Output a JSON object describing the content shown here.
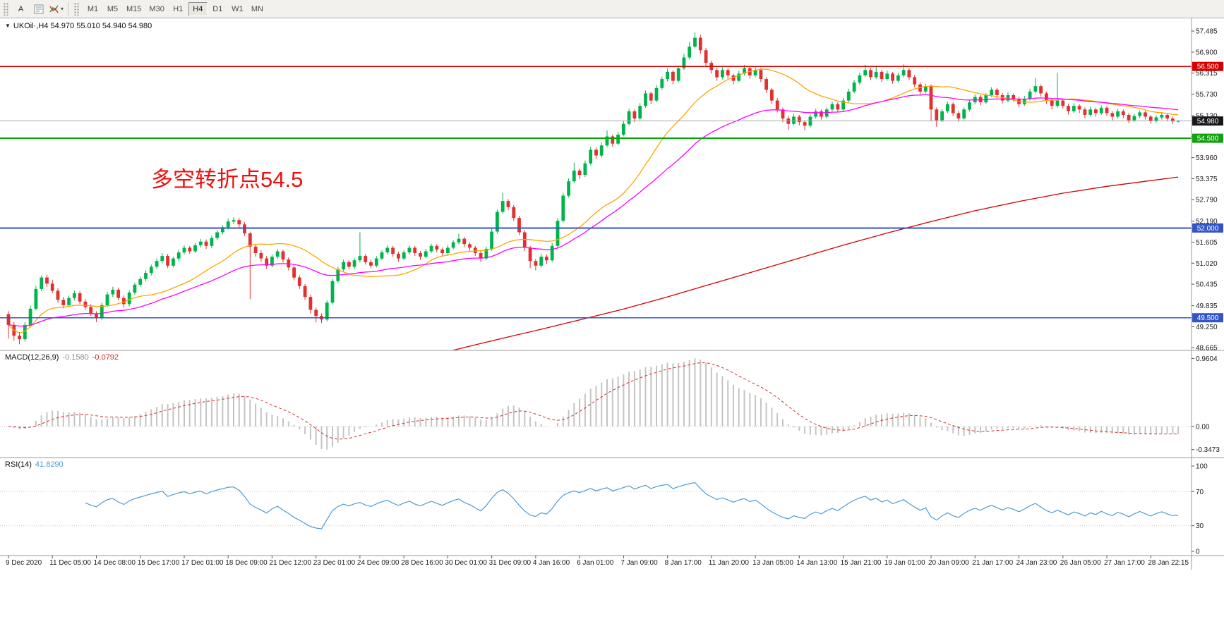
{
  "toolbar": {
    "text_tool_label": "A",
    "timeframes": [
      "M1",
      "M5",
      "M15",
      "M30",
      "H1",
      "H4",
      "D1",
      "W1",
      "MN"
    ],
    "active_timeframe": "H4"
  },
  "chart_data": {
    "type": "candlestick",
    "symbol_label": "UKOil·,H4",
    "ohlc_label": "54.970 55.010 54.940 54.980",
    "annotation": {
      "text": "多空转折点54.5",
      "color": "#f20d0d"
    },
    "colors": {
      "bull": "#00b44b",
      "bear": "#e13030",
      "ma_fast": "#ffa500",
      "ma_mid": "#ff00ff",
      "ma_slow": "#d40000",
      "axis_text": "#1a1a1a"
    },
    "ma_fast_period": 20,
    "ma_mid_period": 40,
    "price_ticks": [
      57.485,
      56.9,
      56.315,
      55.73,
      55.13,
      54.545,
      53.96,
      53.375,
      52.79,
      52.19,
      51.605,
      51.02,
      50.435,
      49.835,
      49.25,
      48.665
    ],
    "hlines": [
      {
        "price": 56.5,
        "color": "#d40000",
        "width": 1.4,
        "badge": "56.500",
        "badge_color": "#d40000"
      },
      {
        "price": 54.98,
        "color": "#a6a6ad",
        "width": 1,
        "badge": "54.980",
        "badge_color": "#17171c"
      },
      {
        "price": 54.5,
        "color": "#00a800",
        "width": 2,
        "badge": "54.500",
        "badge_color": "#11a111"
      },
      {
        "price": 52.0,
        "color": "#3355c8",
        "width": 2,
        "badge": "52.000",
        "badge_color": "#3355c8"
      },
      {
        "price": 49.5,
        "color": "#3355c8",
        "width": 1.4,
        "badge": "49.500",
        "badge_color": "#3355c8"
      }
    ],
    "time_labels": [
      "9 Dec 2020",
      "11 Dec 05:00",
      "14 Dec 08:00",
      "15 Dec 17:00",
      "17 Dec 01:00",
      "18 Dec 09:00",
      "21 Dec 12:00",
      "23 Dec 01:00",
      "24 Dec 09:00",
      "28 Dec 16:00",
      "30 Dec 01:00",
      "31 Dec 09:00",
      "4 Jan 16:00",
      "6 Jan 01:00",
      "7 Jan 09:00",
      "8 Jan 17:00",
      "11 Jan 20:00",
      "13 Jan 05:00",
      "14 Jan 13:00",
      "15 Jan 21:00",
      "19 Jan 01:00",
      "20 Jan 09:00",
      "21 Jan 17:00",
      "24 Jan 23:00",
      "26 Jan 05:00",
      "27 Jan 17:00",
      "28 Jan 22:15"
    ],
    "ma_slow_points": [
      [
        76,
        48.4
      ],
      [
        83,
        48.67
      ],
      [
        90,
        48.93
      ],
      [
        97,
        49.18
      ],
      [
        104,
        49.44
      ],
      [
        112,
        49.74
      ],
      [
        120,
        50.08
      ],
      [
        128,
        50.44
      ],
      [
        136,
        50.8
      ],
      [
        144,
        51.16
      ],
      [
        152,
        51.52
      ],
      [
        160,
        51.86
      ],
      [
        168,
        52.18
      ],
      [
        176,
        52.48
      ],
      [
        184,
        52.74
      ],
      [
        192,
        52.97
      ],
      [
        200,
        53.16
      ],
      [
        207,
        53.3
      ],
      [
        213,
        53.42
      ]
    ],
    "candles": [
      [
        49.6,
        49.68,
        48.92,
        49.3
      ],
      [
        49.3,
        49.38,
        48.86,
        49.0
      ],
      [
        49.0,
        49.1,
        48.76,
        48.9
      ],
      [
        48.9,
        49.38,
        48.84,
        49.3
      ],
      [
        49.3,
        49.84,
        49.26,
        49.75
      ],
      [
        49.75,
        50.38,
        49.7,
        50.3
      ],
      [
        50.3,
        50.68,
        50.24,
        50.62
      ],
      [
        50.62,
        50.7,
        50.36,
        50.45
      ],
      [
        50.45,
        50.56,
        50.18,
        50.25
      ],
      [
        50.25,
        50.32,
        49.92,
        50.0
      ],
      [
        50.0,
        50.08,
        49.76,
        49.85
      ],
      [
        49.85,
        50.12,
        49.8,
        50.05
      ],
      [
        50.05,
        50.26,
        49.98,
        50.18
      ],
      [
        50.18,
        50.24,
        49.88,
        49.95
      ],
      [
        49.95,
        50.02,
        49.72,
        49.8
      ],
      [
        49.8,
        49.88,
        49.55,
        49.62
      ],
      [
        49.62,
        49.68,
        49.38,
        49.5
      ],
      [
        49.5,
        49.92,
        49.44,
        49.85
      ],
      [
        49.85,
        50.22,
        49.8,
        50.15
      ],
      [
        50.15,
        50.36,
        50.08,
        50.28
      ],
      [
        50.28,
        50.34,
        49.98,
        50.05
      ],
      [
        50.05,
        50.12,
        49.78,
        49.88
      ],
      [
        49.88,
        50.26,
        49.82,
        50.2
      ],
      [
        50.2,
        50.48,
        50.14,
        50.42
      ],
      [
        50.42,
        50.64,
        50.36,
        50.58
      ],
      [
        50.58,
        50.82,
        50.52,
        50.75
      ],
      [
        50.75,
        50.98,
        50.68,
        50.92
      ],
      [
        50.92,
        51.15,
        50.86,
        51.08
      ],
      [
        51.08,
        51.3,
        51.02,
        51.22
      ],
      [
        51.22,
        51.28,
        50.88,
        50.95
      ],
      [
        50.95,
        51.2,
        50.9,
        51.15
      ],
      [
        51.15,
        51.38,
        51.08,
        51.32
      ],
      [
        51.32,
        51.52,
        51.26,
        51.45
      ],
      [
        51.45,
        51.5,
        51.28,
        51.35
      ],
      [
        51.35,
        51.58,
        51.3,
        51.52
      ],
      [
        51.52,
        51.7,
        51.46,
        51.62
      ],
      [
        51.62,
        51.68,
        51.42,
        51.5
      ],
      [
        51.5,
        51.78,
        51.44,
        51.72
      ],
      [
        51.72,
        51.94,
        51.66,
        51.88
      ],
      [
        51.88,
        52.08,
        51.82,
        52.02
      ],
      [
        52.02,
        52.26,
        51.96,
        52.18
      ],
      [
        52.18,
        52.3,
        52.1,
        52.22
      ],
      [
        52.22,
        52.28,
        52.0,
        52.1
      ],
      [
        52.1,
        52.16,
        51.78,
        51.85
      ],
      [
        51.85,
        51.9,
        50.02,
        51.48
      ],
      [
        51.48,
        51.54,
        51.2,
        51.3
      ],
      [
        51.3,
        51.38,
        51.06,
        51.15
      ],
      [
        51.15,
        51.22,
        50.86,
        50.95
      ],
      [
        50.95,
        51.26,
        50.9,
        51.2
      ],
      [
        51.2,
        51.42,
        51.14,
        51.35
      ],
      [
        51.35,
        51.4,
        51.04,
        51.12
      ],
      [
        51.12,
        51.18,
        50.82,
        50.9
      ],
      [
        50.9,
        50.96,
        50.54,
        50.62
      ],
      [
        50.62,
        50.68,
        50.3,
        50.38
      ],
      [
        50.38,
        50.44,
        50.0,
        50.08
      ],
      [
        50.08,
        50.14,
        49.62,
        49.72
      ],
      [
        49.72,
        49.78,
        49.37,
        49.55
      ],
      [
        49.55,
        49.62,
        49.35,
        49.45
      ],
      [
        49.45,
        49.98,
        49.4,
        49.92
      ],
      [
        49.92,
        50.58,
        49.86,
        50.52
      ],
      [
        50.52,
        50.92,
        50.46,
        50.85
      ],
      [
        50.85,
        51.12,
        50.8,
        51.05
      ],
      [
        51.05,
        51.1,
        50.84,
        50.92
      ],
      [
        50.92,
        51.16,
        50.86,
        51.1
      ],
      [
        51.1,
        51.88,
        51.04,
        51.22
      ],
      [
        51.22,
        51.28,
        50.98,
        51.05
      ],
      [
        51.05,
        51.12,
        50.88,
        50.95
      ],
      [
        50.95,
        51.22,
        50.9,
        51.15
      ],
      [
        51.15,
        51.38,
        51.1,
        51.32
      ],
      [
        51.32,
        51.52,
        51.26,
        51.45
      ],
      [
        51.45,
        51.5,
        51.2,
        51.28
      ],
      [
        51.28,
        51.34,
        51.06,
        51.15
      ],
      [
        51.15,
        51.38,
        51.1,
        51.32
      ],
      [
        51.32,
        51.52,
        51.26,
        51.45
      ],
      [
        51.45,
        51.5,
        51.22,
        51.3
      ],
      [
        51.3,
        51.36,
        51.12,
        51.2
      ],
      [
        51.2,
        51.42,
        51.15,
        51.35
      ],
      [
        51.35,
        51.56,
        51.3,
        51.5
      ],
      [
        51.5,
        51.55,
        51.32,
        51.4
      ],
      [
        51.4,
        51.46,
        51.22,
        51.3
      ],
      [
        51.3,
        51.52,
        51.25,
        51.45
      ],
      [
        51.45,
        51.66,
        51.4,
        51.6
      ],
      [
        51.6,
        51.84,
        51.55,
        51.7
      ],
      [
        51.7,
        51.75,
        51.47,
        51.55
      ],
      [
        51.55,
        51.6,
        51.36,
        51.45
      ],
      [
        51.45,
        51.5,
        51.22,
        51.3
      ],
      [
        51.3,
        51.36,
        51.05,
        51.15
      ],
      [
        51.15,
        51.48,
        51.1,
        51.42
      ],
      [
        51.42,
        51.98,
        51.36,
        51.9
      ],
      [
        51.9,
        52.52,
        51.84,
        52.45
      ],
      [
        52.45,
        52.98,
        52.4,
        52.75
      ],
      [
        52.75,
        52.8,
        52.5,
        52.58
      ],
      [
        52.58,
        52.64,
        52.2,
        52.28
      ],
      [
        52.28,
        52.34,
        51.8,
        51.88
      ],
      [
        51.88,
        51.94,
        51.36,
        51.45
      ],
      [
        51.45,
        51.5,
        50.88,
        51.08
      ],
      [
        51.08,
        51.14,
        50.82,
        50.95
      ],
      [
        50.95,
        51.28,
        50.9,
        51.2
      ],
      [
        51.2,
        51.26,
        51.0,
        51.1
      ],
      [
        51.1,
        51.58,
        51.05,
        51.5
      ],
      [
        51.5,
        52.28,
        51.45,
        52.2
      ],
      [
        52.2,
        52.98,
        52.15,
        52.9
      ],
      [
        52.9,
        53.38,
        52.85,
        53.3
      ],
      [
        53.3,
        53.82,
        53.25,
        53.6
      ],
      [
        53.6,
        53.66,
        53.36,
        53.48
      ],
      [
        53.48,
        53.88,
        53.42,
        53.8
      ],
      [
        53.8,
        54.26,
        53.75,
        54.18
      ],
      [
        54.18,
        54.24,
        53.92,
        54.02
      ],
      [
        54.02,
        54.38,
        53.96,
        54.3
      ],
      [
        54.3,
        54.72,
        54.25,
        54.55
      ],
      [
        54.55,
        54.6,
        54.26,
        54.35
      ],
      [
        54.35,
        54.68,
        54.3,
        54.6
      ],
      [
        54.6,
        54.98,
        54.55,
        54.9
      ],
      [
        54.9,
        55.32,
        54.85,
        55.25
      ],
      [
        55.25,
        55.3,
        54.95,
        55.05
      ],
      [
        55.05,
        55.48,
        55.0,
        55.4
      ],
      [
        55.4,
        55.83,
        55.35,
        55.75
      ],
      [
        55.75,
        55.8,
        55.45,
        55.55
      ],
      [
        55.55,
        55.98,
        55.5,
        55.9
      ],
      [
        55.9,
        56.22,
        55.85,
        56.15
      ],
      [
        56.15,
        56.44,
        56.08,
        56.35
      ],
      [
        56.35,
        56.4,
        56.0,
        56.1
      ],
      [
        56.1,
        56.52,
        56.05,
        56.45
      ],
      [
        56.45,
        56.84,
        56.4,
        56.75
      ],
      [
        56.75,
        57.18,
        56.7,
        57.05
      ],
      [
        57.05,
        57.45,
        57.0,
        57.3
      ],
      [
        57.3,
        57.38,
        56.85,
        56.95
      ],
      [
        56.95,
        57.02,
        56.5,
        56.6
      ],
      [
        56.6,
        56.66,
        56.3,
        56.4
      ],
      [
        56.4,
        56.46,
        56.1,
        56.2
      ],
      [
        56.2,
        56.48,
        56.14,
        56.4
      ],
      [
        56.4,
        56.45,
        56.16,
        56.25
      ],
      [
        56.25,
        56.3,
        56.0,
        56.1
      ],
      [
        56.1,
        56.38,
        56.05,
        56.3
      ],
      [
        56.3,
        56.54,
        56.25,
        56.45
      ],
      [
        56.45,
        56.5,
        56.16,
        56.25
      ],
      [
        56.25,
        56.48,
        56.2,
        56.4
      ],
      [
        56.4,
        56.45,
        56.06,
        56.15
      ],
      [
        56.15,
        56.2,
        55.76,
        55.85
      ],
      [
        55.85,
        55.9,
        55.46,
        55.55
      ],
      [
        55.55,
        55.62,
        55.22,
        55.3
      ],
      [
        55.3,
        55.36,
        54.95,
        55.05
      ],
      [
        55.05,
        55.12,
        54.73,
        54.9
      ],
      [
        54.9,
        55.18,
        54.85,
        55.1
      ],
      [
        55.1,
        55.15,
        54.86,
        54.95
      ],
      [
        54.95,
        55.0,
        54.72,
        54.85
      ],
      [
        54.85,
        55.16,
        54.8,
        55.1
      ],
      [
        55.1,
        55.32,
        55.05,
        55.25
      ],
      [
        55.25,
        55.3,
        55.02,
        55.1
      ],
      [
        55.1,
        55.36,
        55.05,
        55.3
      ],
      [
        55.3,
        55.52,
        55.25,
        55.45
      ],
      [
        55.45,
        55.5,
        55.22,
        55.3
      ],
      [
        55.3,
        55.62,
        55.25,
        55.55
      ],
      [
        55.55,
        55.88,
        55.5,
        55.8
      ],
      [
        55.8,
        56.12,
        55.75,
        56.05
      ],
      [
        56.05,
        56.32,
        56.0,
        56.25
      ],
      [
        56.25,
        56.55,
        56.2,
        56.4
      ],
      [
        56.4,
        56.46,
        56.12,
        56.2
      ],
      [
        56.2,
        56.52,
        56.15,
        56.35
      ],
      [
        56.35,
        56.4,
        56.06,
        56.15
      ],
      [
        56.15,
        56.38,
        56.1,
        56.3
      ],
      [
        56.3,
        56.35,
        56.02,
        56.1
      ],
      [
        56.1,
        56.32,
        56.05,
        56.25
      ],
      [
        56.25,
        56.56,
        56.2,
        56.4
      ],
      [
        56.4,
        56.45,
        56.12,
        56.2
      ],
      [
        56.2,
        56.26,
        55.92,
        56.0
      ],
      [
        56.0,
        56.06,
        55.72,
        55.8
      ],
      [
        55.8,
        56.02,
        55.75,
        55.95
      ],
      [
        55.95,
        56.0,
        54.98,
        55.3
      ],
      [
        55.3,
        55.36,
        54.82,
        55.0
      ],
      [
        55.0,
        55.32,
        54.95,
        55.25
      ],
      [
        55.25,
        55.52,
        55.2,
        55.45
      ],
      [
        55.45,
        55.5,
        55.12,
        55.2
      ],
      [
        55.2,
        55.26,
        54.96,
        55.05
      ],
      [
        55.05,
        55.36,
        55.0,
        55.3
      ],
      [
        55.3,
        55.56,
        55.25,
        55.5
      ],
      [
        55.5,
        55.72,
        55.45,
        55.65
      ],
      [
        55.65,
        55.7,
        55.42,
        55.5
      ],
      [
        55.5,
        55.76,
        55.45,
        55.7
      ],
      [
        55.7,
        55.92,
        55.65,
        55.85
      ],
      [
        55.85,
        55.9,
        55.62,
        55.7
      ],
      [
        55.7,
        55.76,
        55.47,
        55.55
      ],
      [
        55.55,
        55.78,
        55.5,
        55.7
      ],
      [
        55.7,
        55.75,
        55.52,
        55.6
      ],
      [
        55.6,
        55.66,
        55.36,
        55.45
      ],
      [
        55.45,
        55.68,
        55.4,
        55.6
      ],
      [
        55.6,
        55.88,
        55.55,
        55.8
      ],
      [
        55.8,
        56.18,
        55.75,
        55.95
      ],
      [
        55.95,
        56.0,
        55.66,
        55.75
      ],
      [
        55.75,
        55.8,
        55.46,
        55.55
      ],
      [
        55.55,
        55.6,
        55.3,
        55.4
      ],
      [
        55.4,
        56.32,
        55.35,
        55.55
      ],
      [
        55.55,
        55.6,
        55.32,
        55.4
      ],
      [
        55.4,
        55.46,
        55.16,
        55.25
      ],
      [
        55.25,
        55.48,
        55.2,
        55.4
      ],
      [
        55.4,
        55.45,
        55.2,
        55.3
      ],
      [
        55.3,
        55.36,
        55.06,
        55.15
      ],
      [
        55.15,
        55.38,
        55.1,
        55.3
      ],
      [
        55.3,
        55.35,
        55.1,
        55.2
      ],
      [
        55.2,
        55.42,
        55.15,
        55.35
      ],
      [
        55.35,
        55.4,
        55.12,
        55.2
      ],
      [
        55.2,
        55.26,
        55.0,
        55.1
      ],
      [
        55.1,
        55.32,
        55.05,
        55.25
      ],
      [
        55.25,
        55.3,
        55.06,
        55.15
      ],
      [
        55.15,
        55.2,
        54.92,
        55.0
      ],
      [
        55.0,
        55.18,
        54.95,
        55.12
      ],
      [
        55.12,
        55.28,
        55.06,
        55.22
      ],
      [
        55.22,
        55.26,
        55.02,
        55.1
      ],
      [
        55.1,
        55.15,
        54.9,
        54.98
      ],
      [
        54.98,
        55.14,
        54.93,
        55.08
      ],
      [
        55.08,
        55.22,
        55.02,
        55.15
      ],
      [
        55.15,
        55.2,
        54.98,
        55.05
      ],
      [
        55.05,
        55.1,
        54.9,
        54.97
      ],
      [
        54.97,
        55.01,
        54.94,
        54.98
      ]
    ]
  },
  "macd": {
    "name": "MACD(12,26,9)",
    "value_main": "-0.1580",
    "value_signal": "-0.0792",
    "fast": 12,
    "slow": 26,
    "signal": 9,
    "axis_max": "0.9604",
    "axis_zero": "0.00",
    "axis_min": "-0.3473",
    "histogram_color": "#c4c4c4",
    "signal_color": "#d03030"
  },
  "rsi": {
    "name": "RSI(14)",
    "value": "41.8290",
    "period": 14,
    "levels": [
      70,
      30
    ],
    "axis": [
      {
        "v": 100,
        "label": "100"
      },
      {
        "v": 70,
        "label": "70"
      },
      {
        "v": 30,
        "label": "30"
      },
      {
        "v": 0,
        "label": "0"
      }
    ],
    "line_color": "#4a9bd8"
  }
}
